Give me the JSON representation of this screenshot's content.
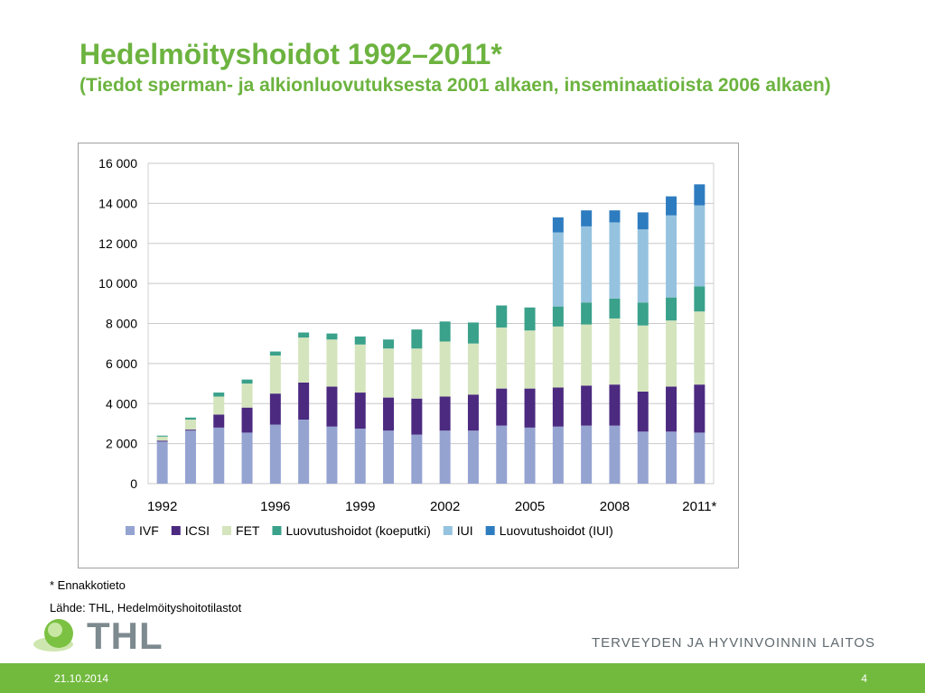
{
  "slide": {
    "title": "Hedelmöityshoidot 1992–2011*",
    "subtitle": "(Tiedot sperman- ja alkionluovutuksesta 2001 alkaen, inseminaatioista 2006 alkaen)",
    "footnote": "* Ennakkotieto",
    "source": "Lähde: THL, Hedelmöityshoitotilastot",
    "logo_text": "THL",
    "organization": "TERVEYDEN JA HYVINVOINNIN LAITOS",
    "date": "21.10.2014",
    "page_number": "4"
  },
  "colors": {
    "accent": "#6cb33f",
    "footer": "#72ba3e"
  },
  "chart_data": {
    "type": "bar",
    "stacked": true,
    "categories": [
      "1992",
      "1993",
      "1994",
      "1995",
      "1996",
      "1997",
      "1998",
      "1999",
      "2000",
      "2001",
      "2002",
      "2003",
      "2004",
      "2005",
      "2006",
      "2007",
      "2008",
      "2009",
      "2010",
      "2011*"
    ],
    "x_tick_labels": [
      "1992",
      "",
      "",
      "",
      "1996",
      "",
      "",
      "1999",
      "",
      "",
      "2002",
      "",
      "",
      "2005",
      "",
      "",
      "2008",
      "",
      "",
      "2011*"
    ],
    "y_ticks": [
      0,
      2000,
      4000,
      6000,
      8000,
      10000,
      12000,
      14000,
      16000
    ],
    "y_tick_labels": [
      "0",
      "2 000",
      "4 000",
      "6 000",
      "8 000",
      "10 000",
      "12 000",
      "14 000",
      "16 000"
    ],
    "ylim": [
      0,
      16000
    ],
    "grid": true,
    "legend_position": "bottom",
    "series": [
      {
        "name": "IVF",
        "color": "#95a3d1",
        "values": [
          2100,
          2650,
          2800,
          2550,
          2950,
          3200,
          2850,
          2750,
          2650,
          2450,
          2650,
          2650,
          2900,
          2800,
          2850,
          2900,
          2900,
          2600,
          2600,
          2550
        ]
      },
      {
        "name": "ICSI",
        "color": "#4b2a80",
        "values": [
          50,
          50,
          650,
          1250,
          1550,
          1850,
          2000,
          1800,
          1650,
          1800,
          1700,
          1800,
          1850,
          1950,
          1950,
          2000,
          2050,
          2000,
          2250,
          2400
        ]
      },
      {
        "name": "FET",
        "color": "#d4e4bd",
        "values": [
          200,
          500,
          900,
          1200,
          1900,
          2250,
          2350,
          2400,
          2450,
          2500,
          2750,
          2550,
          3050,
          2900,
          3050,
          3050,
          3300,
          3300,
          3300,
          3650
        ]
      },
      {
        "name": "Luovutushoidot (koeputki)",
        "color": "#3aa18b",
        "values": [
          50,
          100,
          200,
          200,
          200,
          250,
          300,
          400,
          450,
          950,
          1000,
          1050,
          1100,
          1150,
          1000,
          1100,
          1000,
          1150,
          1150,
          1250
        ]
      },
      {
        "name": "IUI",
        "color": "#95c3df",
        "values": [
          0,
          0,
          0,
          0,
          0,
          0,
          0,
          0,
          0,
          0,
          0,
          0,
          0,
          0,
          3700,
          3800,
          3800,
          3650,
          4100,
          4050
        ]
      },
      {
        "name": "Luovutushoidot (IUI)",
        "color": "#2e7cc0",
        "values": [
          0,
          0,
          0,
          0,
          0,
          0,
          0,
          0,
          0,
          0,
          0,
          0,
          0,
          0,
          750,
          800,
          600,
          850,
          950,
          1050
        ]
      }
    ]
  }
}
